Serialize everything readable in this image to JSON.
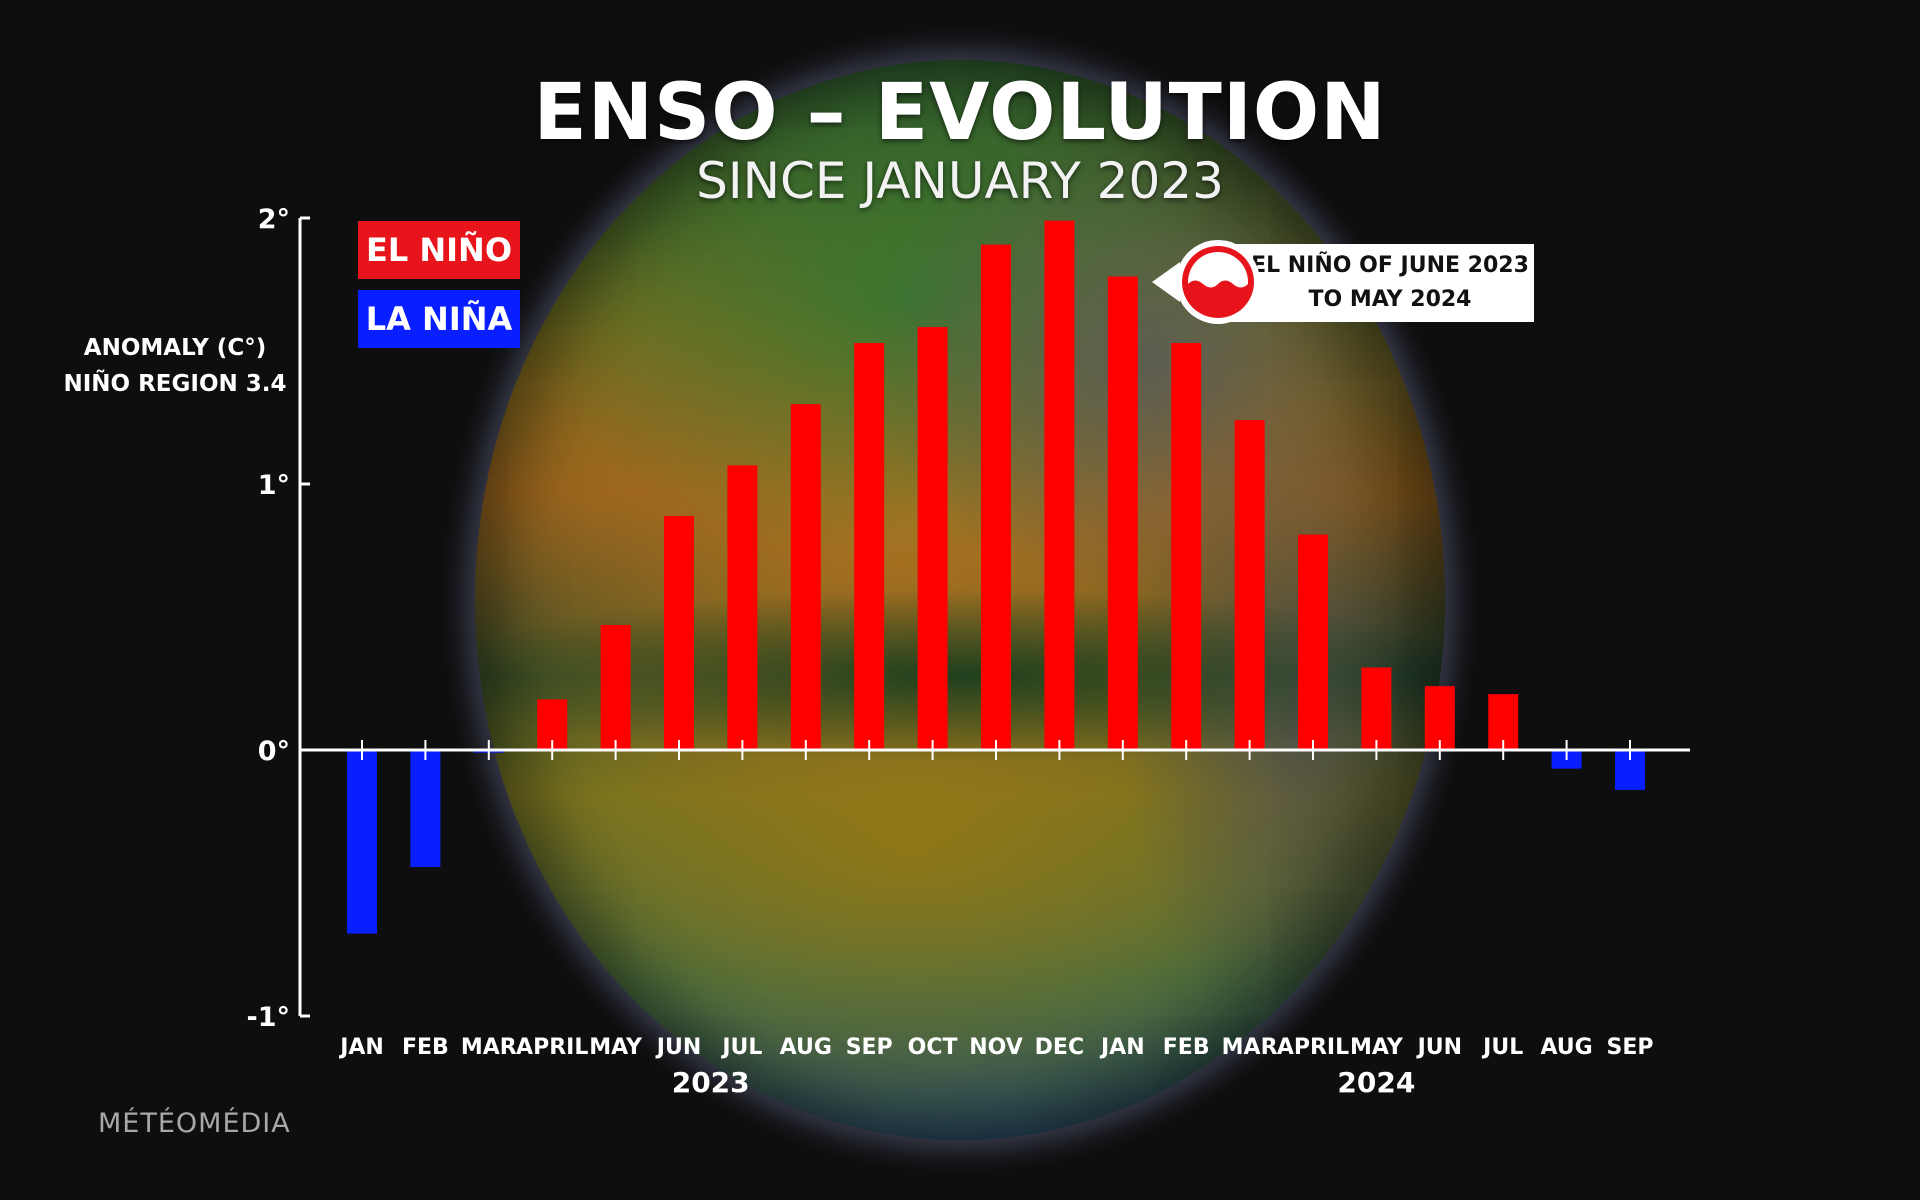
{
  "header": {
    "title": "ENSO – EVOLUTION",
    "subtitle": "SINCE JANUARY 2023"
  },
  "legend": {
    "el_nino": "EL NIÑO",
    "la_nina": "LA NIÑA"
  },
  "callout": {
    "line1": "EL NIÑO OF JUNE 2023",
    "line2": "TO MAY 2024"
  },
  "brand": "MÉTÉOMÉDIA",
  "colors": {
    "el_nino": "#ff0000",
    "la_nina": "#0a1fff",
    "legend_el_bg": "#e8141c",
    "legend_la_bg": "#0a1fff"
  },
  "chart_data": {
    "type": "bar",
    "ylabel_lines": [
      "ANOMALY (C°)",
      "NIÑO REGION 3.4"
    ],
    "ylim": [
      -1,
      2
    ],
    "yticks": [
      {
        "value": 2,
        "label": "2°"
      },
      {
        "value": 1,
        "label": "1°"
      },
      {
        "value": 0,
        "label": "0°"
      },
      {
        "value": -1,
        "label": "-1°"
      }
    ],
    "categories": [
      "JAN",
      "FEB",
      "MAR",
      "APRIL",
      "MAY",
      "JUN",
      "JUL",
      "AUG",
      "SEP",
      "OCT",
      "NOV",
      "DEC",
      "JAN",
      "FEB",
      "MAR",
      "APRIL",
      "MAY",
      "JUN",
      "JUL",
      "AUG",
      "SEP"
    ],
    "values": [
      -0.69,
      -0.44,
      -0.01,
      0.19,
      0.47,
      0.88,
      1.07,
      1.3,
      1.53,
      1.59,
      1.9,
      1.99,
      1.78,
      1.53,
      1.24,
      0.81,
      0.31,
      0.24,
      0.21,
      -0.07,
      -0.15
    ],
    "year_labels": [
      {
        "label": "2023",
        "start_index": 0,
        "end_index": 11
      },
      {
        "label": "2024",
        "start_index": 12,
        "end_index": 20
      }
    ],
    "grid": false,
    "legend_position": "top-left"
  }
}
